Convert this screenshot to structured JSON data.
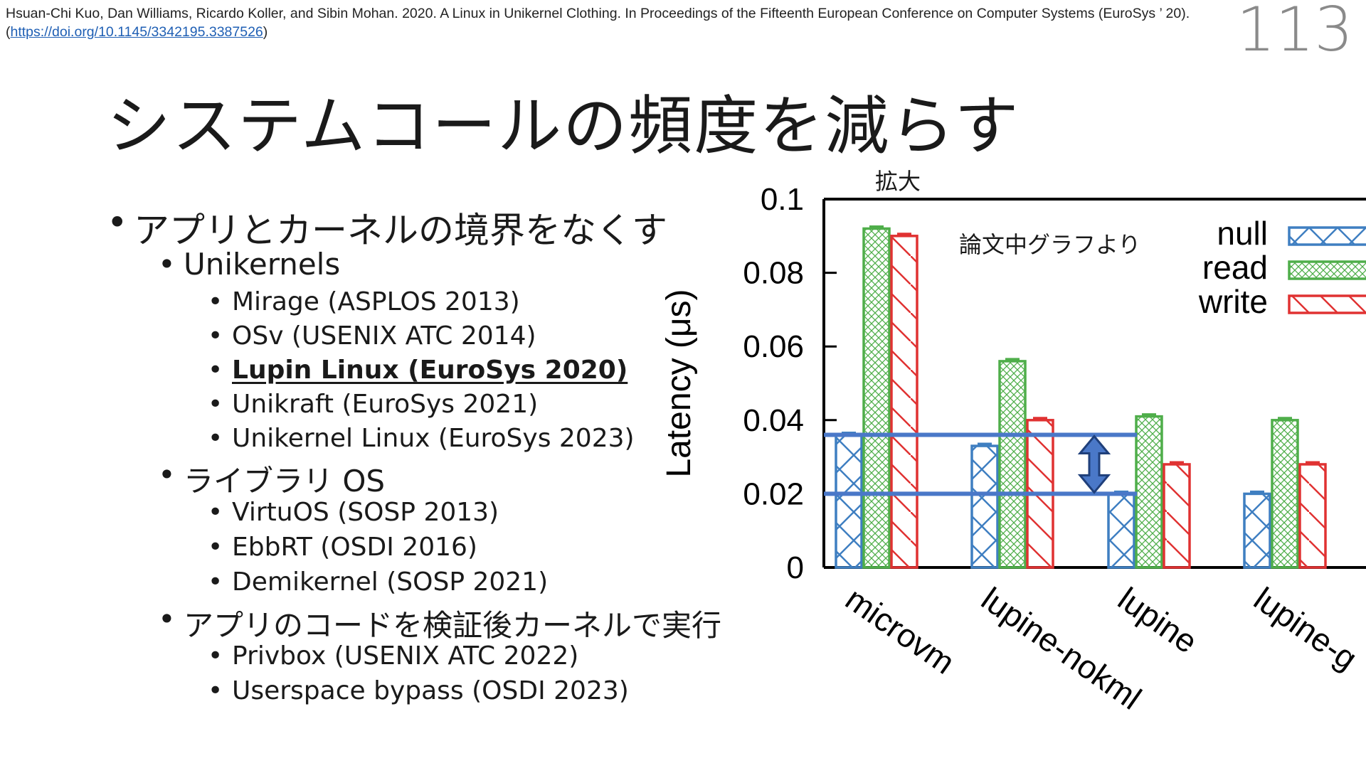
{
  "citation": {
    "text": "Hsuan-Chi Kuo, Dan Williams, Ricardo Koller, and Sibin Mohan. 2020. A Linux in Unikernel Clothing. In Proceedings of the Fifteenth European Conference on Computer Systems (EuroSys ’ 20).(",
    "link": "https://doi.org/10.1145/3342195.3387526",
    "suffix": ")"
  },
  "page_number": "113",
  "title": "システムコールの頻度を減らす",
  "bullets": [
    {
      "level": 1,
      "text": "アプリとカーネルの境界をなくす"
    },
    {
      "level": 2,
      "text": "Unikernels"
    },
    {
      "level": 3,
      "text": "Mirage (ASPLOS 2013)"
    },
    {
      "level": 3,
      "text": "OSv (USENIX ATC 2014)"
    },
    {
      "level": 3,
      "text": "Lupin Linux (EuroSys 2020)",
      "emphasis": true
    },
    {
      "level": 3,
      "text": "Unikraft (EuroSys 2021)"
    },
    {
      "level": 3,
      "text": "Unikernel Linux (EuroSys 2023)"
    },
    {
      "level": 2,
      "text": "ライブラリ OS"
    },
    {
      "level": 3,
      "text": "VirtuOS (SOSP 2013)"
    },
    {
      "level": 3,
      "text": "EbbRT (OSDI 2016)"
    },
    {
      "level": 3,
      "text": "Demikernel (SOSP 2021)"
    },
    {
      "level": 2,
      "text": "アプリのコードを検証後カーネルで実行"
    },
    {
      "level": 3,
      "text": "Privbox (USENIX ATC 2022)"
    },
    {
      "level": 3,
      "text": "Userspace bypass (OSDI 2023)"
    }
  ],
  "zoom_label": "拡大",
  "chart_note": "論文中グラフより",
  "colors": {
    "null": "#3f7fc1",
    "read": "#4fae4a",
    "write": "#e03232",
    "highlight": "#4a78c8"
  },
  "chart_data": {
    "type": "bar",
    "ylabel": "Latency (μs)",
    "ylim": [
      0,
      0.1
    ],
    "yticks": [
      "0",
      "0.02",
      "0.04",
      "0.06",
      "0.08",
      "0.1"
    ],
    "ytick_values": [
      0,
      0.02,
      0.04,
      0.06,
      0.08,
      0.1
    ],
    "categories": [
      "microvm",
      "lupine-nokml",
      "lupine",
      "lupine-g"
    ],
    "series": [
      {
        "name": "null",
        "values": [
          0.036,
          0.033,
          0.02,
          0.02
        ],
        "pattern": "cross"
      },
      {
        "name": "read",
        "values": [
          0.092,
          0.056,
          0.041,
          0.04
        ],
        "pattern": "crosshatch"
      },
      {
        "name": "write",
        "values": [
          0.09,
          0.04,
          0.028,
          0.028
        ],
        "pattern": "diagonal"
      }
    ],
    "legend": "top-right",
    "annotations": {
      "hlines": [
        0.036,
        0.02
      ],
      "arrow": "double-headed between hlines"
    }
  }
}
